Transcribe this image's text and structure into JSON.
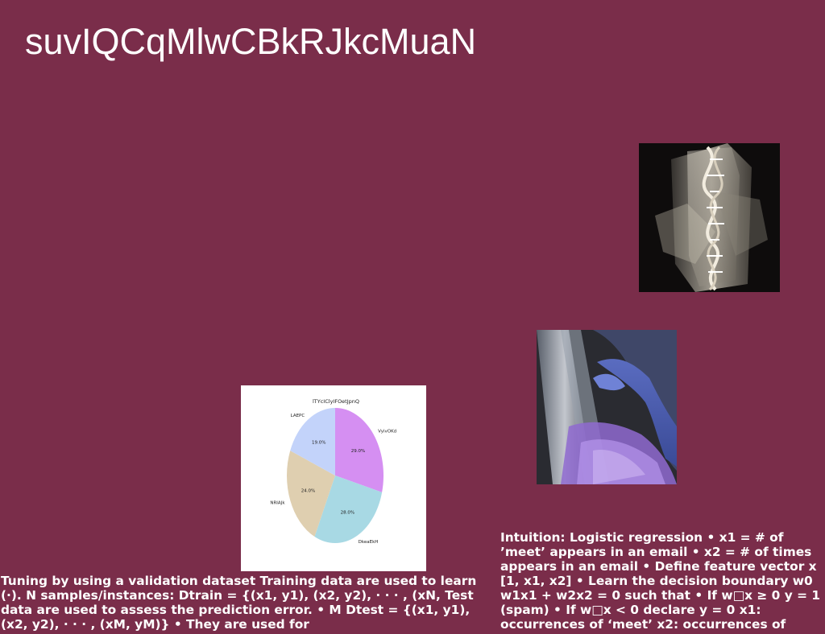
{
  "slide": {
    "title": "suvIQCqMlwCBkRJkcMuaN",
    "background_color": "#7a2d4a"
  },
  "images": {
    "dna": {
      "description_icon": "dna-helix-crystal-photo"
    },
    "figure": {
      "description_icon": "blue-figure-photo"
    }
  },
  "text_blocks": {
    "left": "Tuning by using a validation dataset Training data are used to learn (·). N samples/instances: Dtrain = {(x1, y1), (x2, y2), · · · , (xN, Test data are used to assess the prediction error. • M Dtest = {(x1, y1), (x2, y2), · · · , (xM, yM)} • They are used for",
    "right": "Intuition: Logistic regression • x1 = # of ’meet’ appears in an email • x2 = # of times appears in an email • Define feature vector x [1, x1, x2] • Learn the decision boundary w0 w1x1 + w2x2 = 0 such that • If w□x ≥ 0 y = 1 (spam) • If w□x < 0 declare y = 0 x1: occurrences of ‘meet’ x2: occurrences of"
  },
  "chart_data": {
    "type": "pie",
    "title": "lTYcIClyIFOetJpnQ",
    "slices": [
      {
        "label": "VyivOKd",
        "value": 29.0,
        "display": "29.0%",
        "color": "#d58ff2"
      },
      {
        "label": "DkeaEkH",
        "value": 28.0,
        "display": "28.0%",
        "color": "#a8d9e4"
      },
      {
        "label": "NRIAJk",
        "value": 24.0,
        "display": "24.0%",
        "color": "#dfcfb0"
      },
      {
        "label": "LAEPC",
        "value": 19.0,
        "display": "19.0%",
        "color": "#c3d3fa"
      }
    ],
    "start_angle_deg": 90,
    "direction": "clockwise",
    "legend": "none"
  }
}
